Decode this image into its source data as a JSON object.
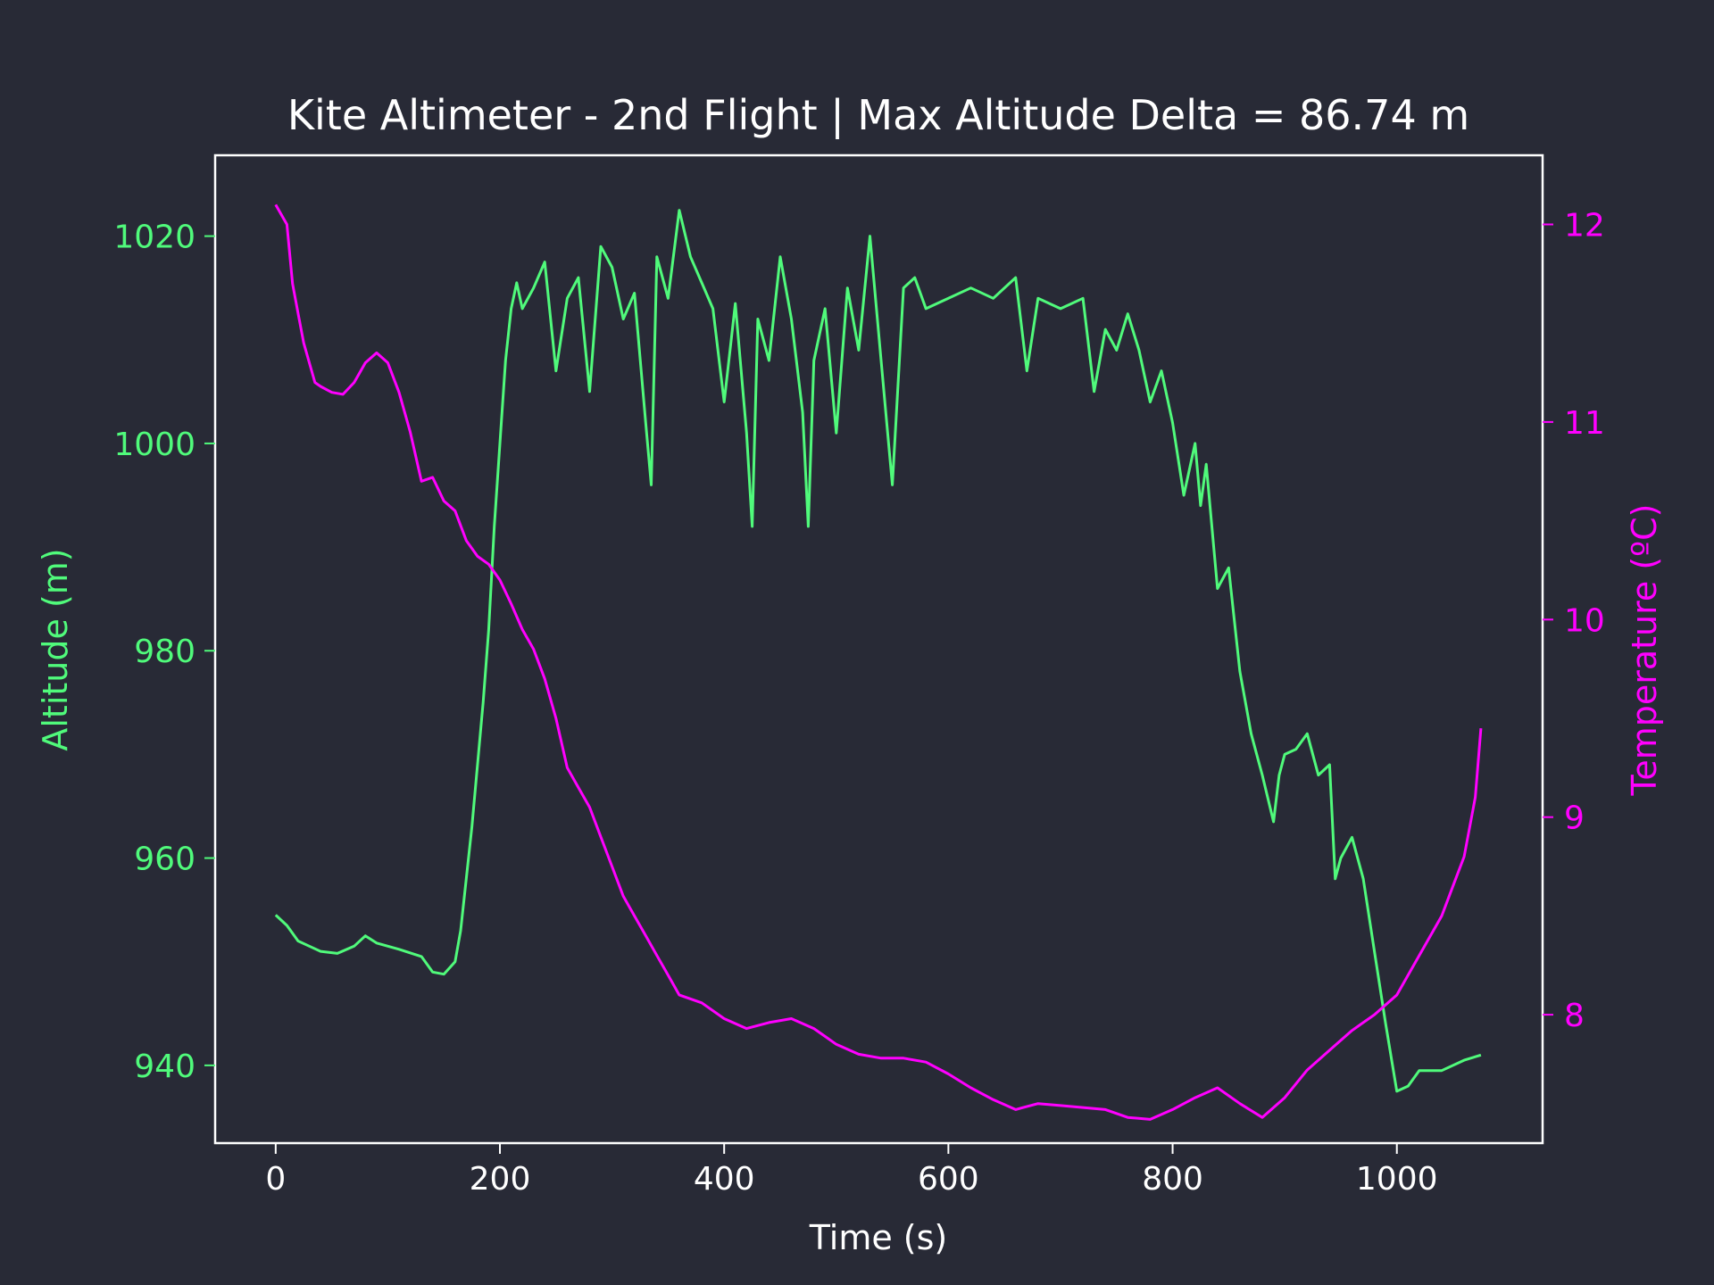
{
  "chart_data": {
    "type": "line",
    "title": "Kite Altimeter - 2nd Flight | Max Altitude Delta = 86.74 m",
    "xlabel": "Time (s)",
    "ylabel_left": "Altitude (m)",
    "ylabel_right": "Temperature (ºC)",
    "xlim": [
      -54,
      1130
    ],
    "ylim_left": [
      932.5,
      1027.8
    ],
    "ylim_right": [
      7.35,
      12.35
    ],
    "x_ticks": [
      "0",
      "200",
      "400",
      "600",
      "800",
      "1000"
    ],
    "y_left_ticks": [
      "940",
      "960",
      "980",
      "1000",
      "1020"
    ],
    "y_right_ticks": [
      "8",
      "9",
      "10",
      "11",
      "12"
    ],
    "grid": false,
    "legend": "none",
    "colors": {
      "background": "#282a36",
      "axes": "#ffffff",
      "altitude": "#50fa7b",
      "temperature": "#ff00ff"
    },
    "series": [
      {
        "axis": "left",
        "x": [
          0,
          10,
          20,
          30,
          40,
          55,
          70,
          80,
          90,
          110,
          130,
          140,
          150,
          160,
          165,
          170,
          175,
          180,
          185,
          190,
          195,
          200,
          205,
          210,
          215,
          220,
          230,
          240,
          250,
          260,
          270,
          280,
          290,
          300,
          310,
          320,
          330,
          335,
          340,
          350,
          360,
          370,
          380,
          390,
          400,
          410,
          420,
          425,
          430,
          440,
          450,
          460,
          470,
          475,
          480,
          490,
          500,
          510,
          520,
          530,
          540,
          550,
          560,
          570,
          580,
          600,
          620,
          640,
          660,
          670,
          680,
          700,
          720,
          730,
          740,
          750,
          760,
          770,
          780,
          790,
          800,
          810,
          820,
          825,
          830,
          840,
          850,
          860,
          870,
          880,
          890,
          895,
          900,
          910,
          920,
          930,
          940,
          945,
          950,
          960,
          970,
          980,
          990,
          1000,
          1010,
          1020,
          1040,
          1060,
          1075
        ],
        "values": [
          954.5,
          953.5,
          952.0,
          951.5,
          951.0,
          950.8,
          951.5,
          952.5,
          951.8,
          951.2,
          950.5,
          949.0,
          948.8,
          950.0,
          953.0,
          958.0,
          963.0,
          969.0,
          975.0,
          982.0,
          992.0,
          1000.0,
          1008.0,
          1013.0,
          1015.5,
          1013.0,
          1015.0,
          1017.5,
          1007.0,
          1014.0,
          1016.0,
          1005.0,
          1019.0,
          1017.0,
          1012.0,
          1014.5,
          1002.0,
          996.0,
          1018.0,
          1014.0,
          1022.5,
          1018.0,
          1015.5,
          1013.0,
          1004.0,
          1013.5,
          1001.0,
          992.0,
          1012.0,
          1008.0,
          1018.0,
          1012.0,
          1003.0,
          992.0,
          1008.0,
          1013.0,
          1001.0,
          1015.0,
          1009.0,
          1020.0,
          1008.0,
          996.0,
          1015.0,
          1016.0,
          1013.0,
          1014.0,
          1015.0,
          1014.0,
          1016.0,
          1007.0,
          1014.0,
          1013.0,
          1014.0,
          1005.0,
          1011.0,
          1009.0,
          1012.5,
          1009.0,
          1004.0,
          1007.0,
          1002.0,
          995.0,
          1000.0,
          994.0,
          998.0,
          986.0,
          988.0,
          978.0,
          972.0,
          968.0,
          963.5,
          968.0,
          970.0,
          970.5,
          972.0,
          968.0,
          969.0,
          958.0,
          960.0,
          962.0,
          958.0,
          951.0,
          944.0,
          937.5,
          938.0,
          939.5,
          939.5,
          940.5,
          941.0
        ]
      },
      {
        "axis": "right",
        "x": [
          0,
          10,
          15,
          20,
          25,
          30,
          35,
          40,
          50,
          60,
          70,
          80,
          90,
          100,
          110,
          120,
          130,
          140,
          150,
          160,
          170,
          180,
          190,
          200,
          210,
          220,
          230,
          240,
          250,
          260,
          270,
          280,
          290,
          300,
          310,
          320,
          330,
          340,
          350,
          360,
          380,
          400,
          420,
          440,
          460,
          480,
          490,
          500,
          520,
          540,
          560,
          580,
          600,
          620,
          640,
          660,
          680,
          700,
          720,
          740,
          760,
          780,
          800,
          820,
          840,
          860,
          880,
          900,
          920,
          940,
          960,
          980,
          1000,
          1020,
          1040,
          1050,
          1060,
          1070,
          1075
        ],
        "values": [
          12.1,
          12.0,
          11.7,
          11.55,
          11.4,
          11.3,
          11.2,
          11.18,
          11.15,
          11.14,
          11.2,
          11.3,
          11.35,
          11.3,
          11.15,
          10.95,
          10.7,
          10.72,
          10.6,
          10.55,
          10.4,
          10.32,
          10.28,
          10.2,
          10.08,
          9.95,
          9.85,
          9.7,
          9.5,
          9.25,
          9.15,
          9.05,
          8.9,
          8.75,
          8.6,
          8.5,
          8.4,
          8.3,
          8.2,
          8.1,
          8.06,
          7.98,
          7.93,
          7.96,
          7.98,
          7.93,
          7.89,
          7.85,
          7.8,
          7.78,
          7.78,
          7.76,
          7.7,
          7.63,
          7.57,
          7.52,
          7.55,
          7.54,
          7.53,
          7.52,
          7.48,
          7.47,
          7.52,
          7.58,
          7.63,
          7.55,
          7.48,
          7.58,
          7.72,
          7.82,
          7.92,
          8.0,
          8.1,
          8.3,
          8.5,
          8.65,
          8.8,
          9.1,
          9.45
        ]
      }
    ]
  }
}
